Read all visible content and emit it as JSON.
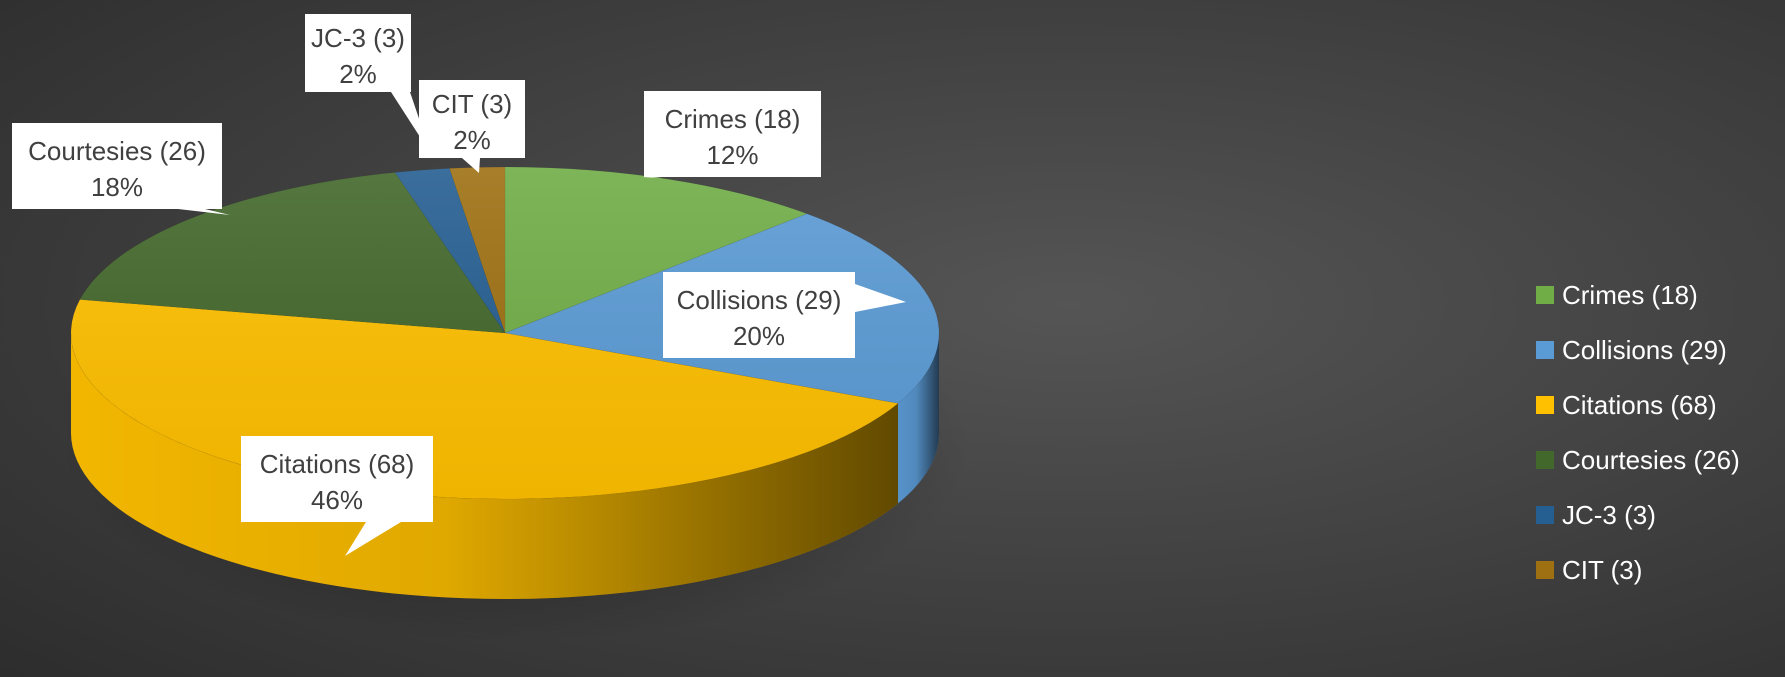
{
  "chart_data": {
    "type": "pie",
    "style": "3d-exploded-label-callouts",
    "title": "",
    "background": "#3a3a3a",
    "label_text_color": "#404040",
    "legend_text_color": "#ffffff",
    "legend_position": "right",
    "slices": [
      {
        "name": "Crimes (18)",
        "value": 18,
        "percent_label": "12%",
        "color": "#70ad47"
      },
      {
        "name": "Collisions (29)",
        "value": 29,
        "percent_label": "20%",
        "color": "#5b9bd5"
      },
      {
        "name": "Citations (68)",
        "value": 68,
        "percent_label": "46%",
        "color": "#ffc000"
      },
      {
        "name": "Courtesies (26)",
        "value": 26,
        "percent_label": "18%",
        "color": "#43682b"
      },
      {
        "name": "JC-3 (3)",
        "value": 3,
        "percent_label": "2%",
        "color": "#255e91"
      },
      {
        "name": "CIT (3)",
        "value": 3,
        "percent_label": "2%",
        "color": "#9e7012"
      }
    ]
  }
}
